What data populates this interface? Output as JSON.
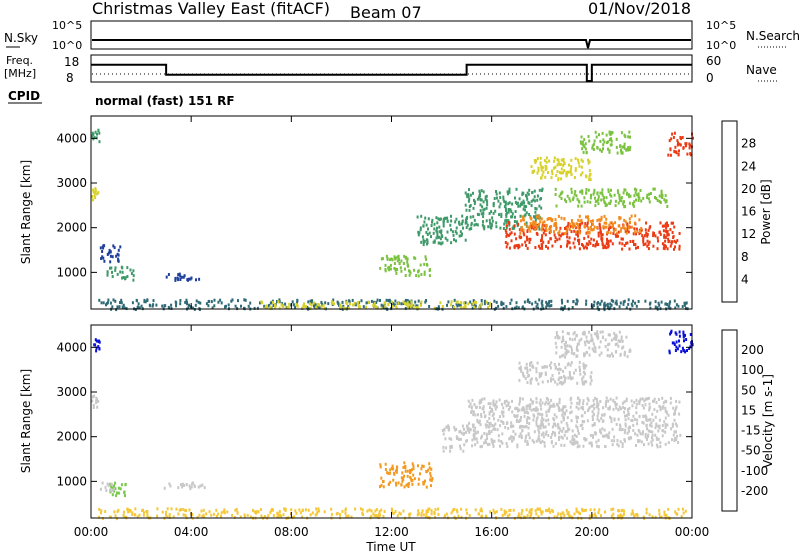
{
  "header": {
    "title": "Christmas Valley East (fitACF)",
    "beam": "Beam 07",
    "date": "01/Nov/2018"
  },
  "strips": {
    "nsky": {
      "left_label": "N.Sky",
      "left_ticks": [
        "10^5",
        "10^0"
      ],
      "right_label": "N.Search",
      "right_ticks": [
        "10^5",
        "10^0"
      ]
    },
    "freq": {
      "left_label_1": "Freq.",
      "left_label_2": "[MHz]",
      "left_ticks": [
        "18",
        "8"
      ],
      "right_label": "Nave",
      "right_ticks": [
        "60",
        "0"
      ],
      "freq_segments": [
        {
          "start": 0.0,
          "end": 3.0,
          "value": 14.5
        },
        {
          "start": 3.0,
          "end": 15.0,
          "value": 10.5
        },
        {
          "start": 15.0,
          "end": 19.8,
          "value": 14.5
        },
        {
          "start": 19.8,
          "end": 20.0,
          "value": 6.0
        },
        {
          "start": 20.0,
          "end": 24.0,
          "value": 14.5
        }
      ]
    },
    "cpid": {
      "label": "CPID",
      "text": "normal (fast) 151 RF"
    }
  },
  "chart_data": [
    {
      "type": "heatmap",
      "name": "power",
      "ylabel": "Slant Range [km]",
      "xlabel": "Time UT",
      "xlim": [
        0,
        24
      ],
      "ylim": [
        180,
        4500
      ],
      "yticks": [
        "1000",
        "2000",
        "3000",
        "4000"
      ],
      "colorbar": {
        "label": "Power [dB]",
        "ticks": [
          "28",
          "24",
          "20",
          "16",
          "12",
          "8",
          "4"
        ],
        "bounds": [
          0,
          4,
          8,
          12,
          16,
          20,
          24,
          28,
          32
        ],
        "colors": [
          "#0a14dc",
          "#1f3f9b",
          "#2f6a76",
          "#3f9a69",
          "#7ac23f",
          "#d7d12a",
          "#f28a1c",
          "#ec3a14"
        ]
      },
      "regions": [
        {
          "t0": 0.0,
          "t1": 0.3,
          "r0": 3950,
          "r1": 4250,
          "color": "#3f9a69"
        },
        {
          "t0": 0.0,
          "t1": 0.25,
          "r0": 2650,
          "r1": 2950,
          "color": "#d7d12a"
        },
        {
          "t0": 0.6,
          "t1": 1.7,
          "r0": 850,
          "r1": 1150,
          "color": "#3f9a69"
        },
        {
          "t0": 0.3,
          "t1": 1.2,
          "r0": 1250,
          "r1": 1650,
          "color": "#1f3f9b"
        },
        {
          "t0": 2.8,
          "t1": 4.6,
          "r0": 850,
          "r1": 1000,
          "color": "#1f3f9b"
        },
        {
          "t0": 0.2,
          "t1": 23.8,
          "r0": 200,
          "r1": 420,
          "color": "#2f6a76"
        },
        {
          "t0": 6.5,
          "t1": 16.0,
          "r0": 220,
          "r1": 380,
          "color": "#d7d12a"
        },
        {
          "t0": 11.5,
          "t1": 13.5,
          "r0": 950,
          "r1": 1400,
          "color": "#7ac23f"
        },
        {
          "t0": 13.0,
          "t1": 15.0,
          "r0": 1650,
          "r1": 2300,
          "color": "#3f9a69"
        },
        {
          "t0": 14.9,
          "t1": 18.0,
          "r0": 2000,
          "r1": 2900,
          "color": "#3f9a69"
        },
        {
          "t0": 16.5,
          "t1": 23.5,
          "r0": 1550,
          "r1": 2150,
          "color": "#ec3a14"
        },
        {
          "t0": 17.0,
          "t1": 22.0,
          "r0": 1900,
          "r1": 2300,
          "color": "#f28a1c"
        },
        {
          "t0": 18.5,
          "t1": 23.0,
          "r0": 2500,
          "r1": 2900,
          "color": "#7ac23f"
        },
        {
          "t0": 17.5,
          "t1": 20.0,
          "r0": 3100,
          "r1": 3600,
          "color": "#d7d12a"
        },
        {
          "t0": 19.5,
          "t1": 21.5,
          "r0": 3700,
          "r1": 4200,
          "color": "#7ac23f"
        },
        {
          "t0": 23.0,
          "t1": 24.0,
          "r0": 3650,
          "r1": 4150,
          "color": "#ec3a14"
        }
      ]
    },
    {
      "type": "heatmap",
      "name": "velocity",
      "ylabel": "Slant Range [km]",
      "xlabel": "Time UT",
      "xlim": [
        0,
        24
      ],
      "ylim": [
        180,
        4500
      ],
      "yticks": [
        "1000",
        "2000",
        "3000",
        "4000"
      ],
      "xticks": [
        "00:00",
        "04:00",
        "08:00",
        "12:00",
        "16:00",
        "20:00",
        "00:00"
      ],
      "colorbar": {
        "label": "Velocity [m s-1]",
        "ticks": [
          "200",
          "100",
          "50",
          "15",
          "-15",
          "-50",
          "-100",
          "-200"
        ],
        "bounds": [
          -250,
          -200,
          -100,
          -50,
          -15,
          15,
          50,
          100,
          200,
          250
        ],
        "colors": [
          "#ec1010",
          "#f24a16",
          "#f59a20",
          "#f5c83a",
          "#c8c8c8",
          "#78c84a",
          "#2e8f3a",
          "#1e3faf",
          "#0a10d8"
        ]
      },
      "regions": [
        {
          "t0": 0.0,
          "t1": 0.35,
          "r0": 3950,
          "r1": 4300,
          "color": "#0a10d8"
        },
        {
          "t0": 0.0,
          "t1": 0.25,
          "r0": 2650,
          "r1": 2950,
          "color": "#c8c8c8"
        },
        {
          "t0": 0.7,
          "t1": 1.6,
          "r0": 700,
          "r1": 1000,
          "color": "#78c84a"
        },
        {
          "t0": 0.3,
          "t1": 1.0,
          "r0": 800,
          "r1": 1000,
          "color": "#c8c8c8"
        },
        {
          "t0": 2.8,
          "t1": 4.6,
          "r0": 850,
          "r1": 1000,
          "color": "#c8c8c8"
        },
        {
          "t0": 0.2,
          "t1": 23.8,
          "r0": 200,
          "r1": 420,
          "color": "#f5c83a"
        },
        {
          "t0": 11.5,
          "t1": 13.6,
          "r0": 900,
          "r1": 1450,
          "color": "#f59a20"
        },
        {
          "t0": 14.0,
          "t1": 15.0,
          "r0": 1700,
          "r1": 2300,
          "color": "#c8c8c8"
        },
        {
          "t0": 15.0,
          "t1": 23.5,
          "r0": 1800,
          "r1": 2900,
          "color": "#c8c8c8"
        },
        {
          "t0": 17.0,
          "t1": 20.0,
          "r0": 3200,
          "r1": 3700,
          "color": "#c8c8c8"
        },
        {
          "t0": 18.5,
          "t1": 21.5,
          "r0": 3800,
          "r1": 4400,
          "color": "#c8c8c8"
        },
        {
          "t0": 23.0,
          "t1": 24.0,
          "r0": 3900,
          "r1": 4400,
          "color": "#0a10d8"
        }
      ]
    }
  ]
}
